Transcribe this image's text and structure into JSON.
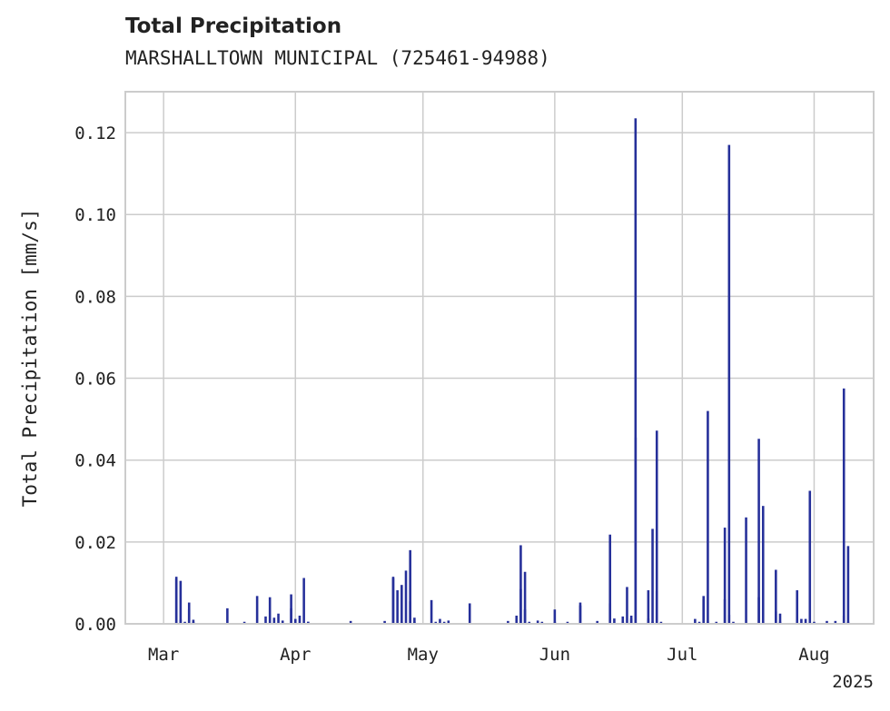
{
  "title": "Total Precipitation",
  "subtitle": "MARSHALLTOWN MUNICIPAL (725461-94988)",
  "colors": {
    "series": "#26309a",
    "grid": "#cccccc",
    "frame": "#cccccc",
    "text": "#222222"
  },
  "chart_data": {
    "type": "bar",
    "title": "Total Precipitation",
    "subtitle": "MARSHALLTOWN MUNICIPAL (725461-94988)",
    "ylabel": "Total Precipitation [mm/s]",
    "xlabel": "",
    "x_year_label": "2025",
    "x_range": [
      "2025-02-20",
      "2025-08-15"
    ],
    "ylim": [
      0,
      0.13
    ],
    "grid": true,
    "x_ticks": [
      {
        "date": "2025-03-01",
        "label": "Mar"
      },
      {
        "date": "2025-04-01",
        "label": "Apr"
      },
      {
        "date": "2025-05-01",
        "label": "May"
      },
      {
        "date": "2025-06-01",
        "label": "Jun"
      },
      {
        "date": "2025-07-01",
        "label": "Jul"
      },
      {
        "date": "2025-08-01",
        "label": "Aug"
      }
    ],
    "y_ticks": [
      {
        "value": 0,
        "label": "0.00"
      },
      {
        "value": 0.02,
        "label": "0.02"
      },
      {
        "value": 0.04,
        "label": "0.04"
      },
      {
        "value": 0.06,
        "label": "0.06"
      },
      {
        "value": 0.08,
        "label": "0.08"
      },
      {
        "value": 0.1,
        "label": "0.10"
      },
      {
        "value": 0.12,
        "label": "0.12"
      }
    ],
    "series": [
      {
        "x": [
          "2025-03-04",
          "2025-03-04",
          "2025-03-05",
          "2025-03-05",
          "2025-03-06",
          "2025-03-07",
          "2025-03-07",
          "2025-03-08",
          "2025-03-08",
          "2025-03-16",
          "2025-03-20",
          "2025-03-23",
          "2025-03-25",
          "2025-03-26",
          "2025-03-27",
          "2025-03-28",
          "2025-03-29",
          "2025-03-31",
          "2025-03-31",
          "2025-04-01",
          "2025-04-02",
          "2025-04-03",
          "2025-04-04",
          "2025-04-04",
          "2025-04-14",
          "2025-04-22",
          "2025-04-24",
          "2025-04-24",
          "2025-04-25",
          "2025-04-26",
          "2025-04-26",
          "2025-04-27",
          "2025-04-28",
          "2025-04-28",
          "2025-04-29",
          "2025-04-29",
          "2025-05-03",
          "2025-05-04",
          "2025-05-05",
          "2025-05-06",
          "2025-05-07",
          "2025-05-12",
          "2025-05-21",
          "2025-05-23",
          "2025-05-24",
          "2025-05-24",
          "2025-05-25",
          "2025-05-25",
          "2025-05-26",
          "2025-05-28",
          "2025-05-29",
          "2025-06-01",
          "2025-06-01",
          "2025-06-04",
          "2025-06-07",
          "2025-06-07",
          "2025-06-11",
          "2025-06-14",
          "2025-06-14",
          "2025-06-15",
          "2025-06-17",
          "2025-06-17",
          "2025-06-18",
          "2025-06-19",
          "2025-06-19",
          "2025-06-20",
          "2025-06-20",
          "2025-06-23",
          "2025-06-23",
          "2025-06-24",
          "2025-06-24",
          "2025-06-25",
          "2025-06-25",
          "2025-06-26",
          "2025-07-04",
          "2025-07-05",
          "2025-07-06",
          "2025-07-06",
          "2025-07-07",
          "2025-07-07",
          "2025-07-09",
          "2025-07-11",
          "2025-07-11",
          "2025-07-12",
          "2025-07-12",
          "2025-07-13",
          "2025-07-16",
          "2025-07-19",
          "2025-07-19",
          "2025-07-20",
          "2025-07-20",
          "2025-07-23",
          "2025-07-23",
          "2025-07-24",
          "2025-07-24",
          "2025-07-28",
          "2025-07-29",
          "2025-07-30",
          "2025-07-31",
          "2025-07-31",
          "2025-08-01",
          "2025-08-04",
          "2025-08-06",
          "2025-08-08",
          "2025-08-08",
          "2025-08-09",
          "2025-08-09"
        ],
        "values": [
          0.011,
          0.0115,
          0.0105,
          0.001,
          0.0005,
          0.0052,
          0.0035,
          0.001,
          0.0005,
          0.0038,
          0.0005,
          0.0068,
          0.0018,
          0.0065,
          0.0015,
          0.0025,
          0.0008,
          0.0072,
          0.0038,
          0.0012,
          0.002,
          0.0112,
          0.0005,
          0.0005,
          0.0007,
          0.0007,
          0.0112,
          0.0115,
          0.0082,
          0.0095,
          0.0005,
          0.013,
          0.0055,
          0.018,
          0.0015,
          0.0005,
          0.0058,
          0.0005,
          0.0012,
          0.0005,
          0.0008,
          0.005,
          0.0007,
          0.002,
          0.0192,
          0.0085,
          0.0127,
          0.0035,
          0.0005,
          0.0008,
          0.0005,
          0.0005,
          0.0035,
          0.0005,
          0.0052,
          0.0045,
          0.0007,
          0.0218,
          0.005,
          0.0013,
          0.0018,
          0.0005,
          0.009,
          0.0013,
          0.002,
          0.0455,
          0.1235,
          0.0082,
          0.0013,
          0.0232,
          0.0005,
          0.0472,
          0.008,
          0.0005,
          0.0012,
          0.0005,
          0.006,
          0.0068,
          0.052,
          0.0005,
          0.0005,
          0.006,
          0.0235,
          0.117,
          0.0022,
          0.0005,
          0.026,
          0.0065,
          0.0452,
          0.0288,
          0.0005,
          0.0132,
          0.003,
          0.0025,
          0.0005,
          0.0082,
          0.0012,
          0.0012,
          0.0325,
          0.0005,
          0.0005,
          0.0007,
          0.0007,
          0.002,
          0.0575,
          0.019,
          0.0005
        ]
      }
    ]
  }
}
